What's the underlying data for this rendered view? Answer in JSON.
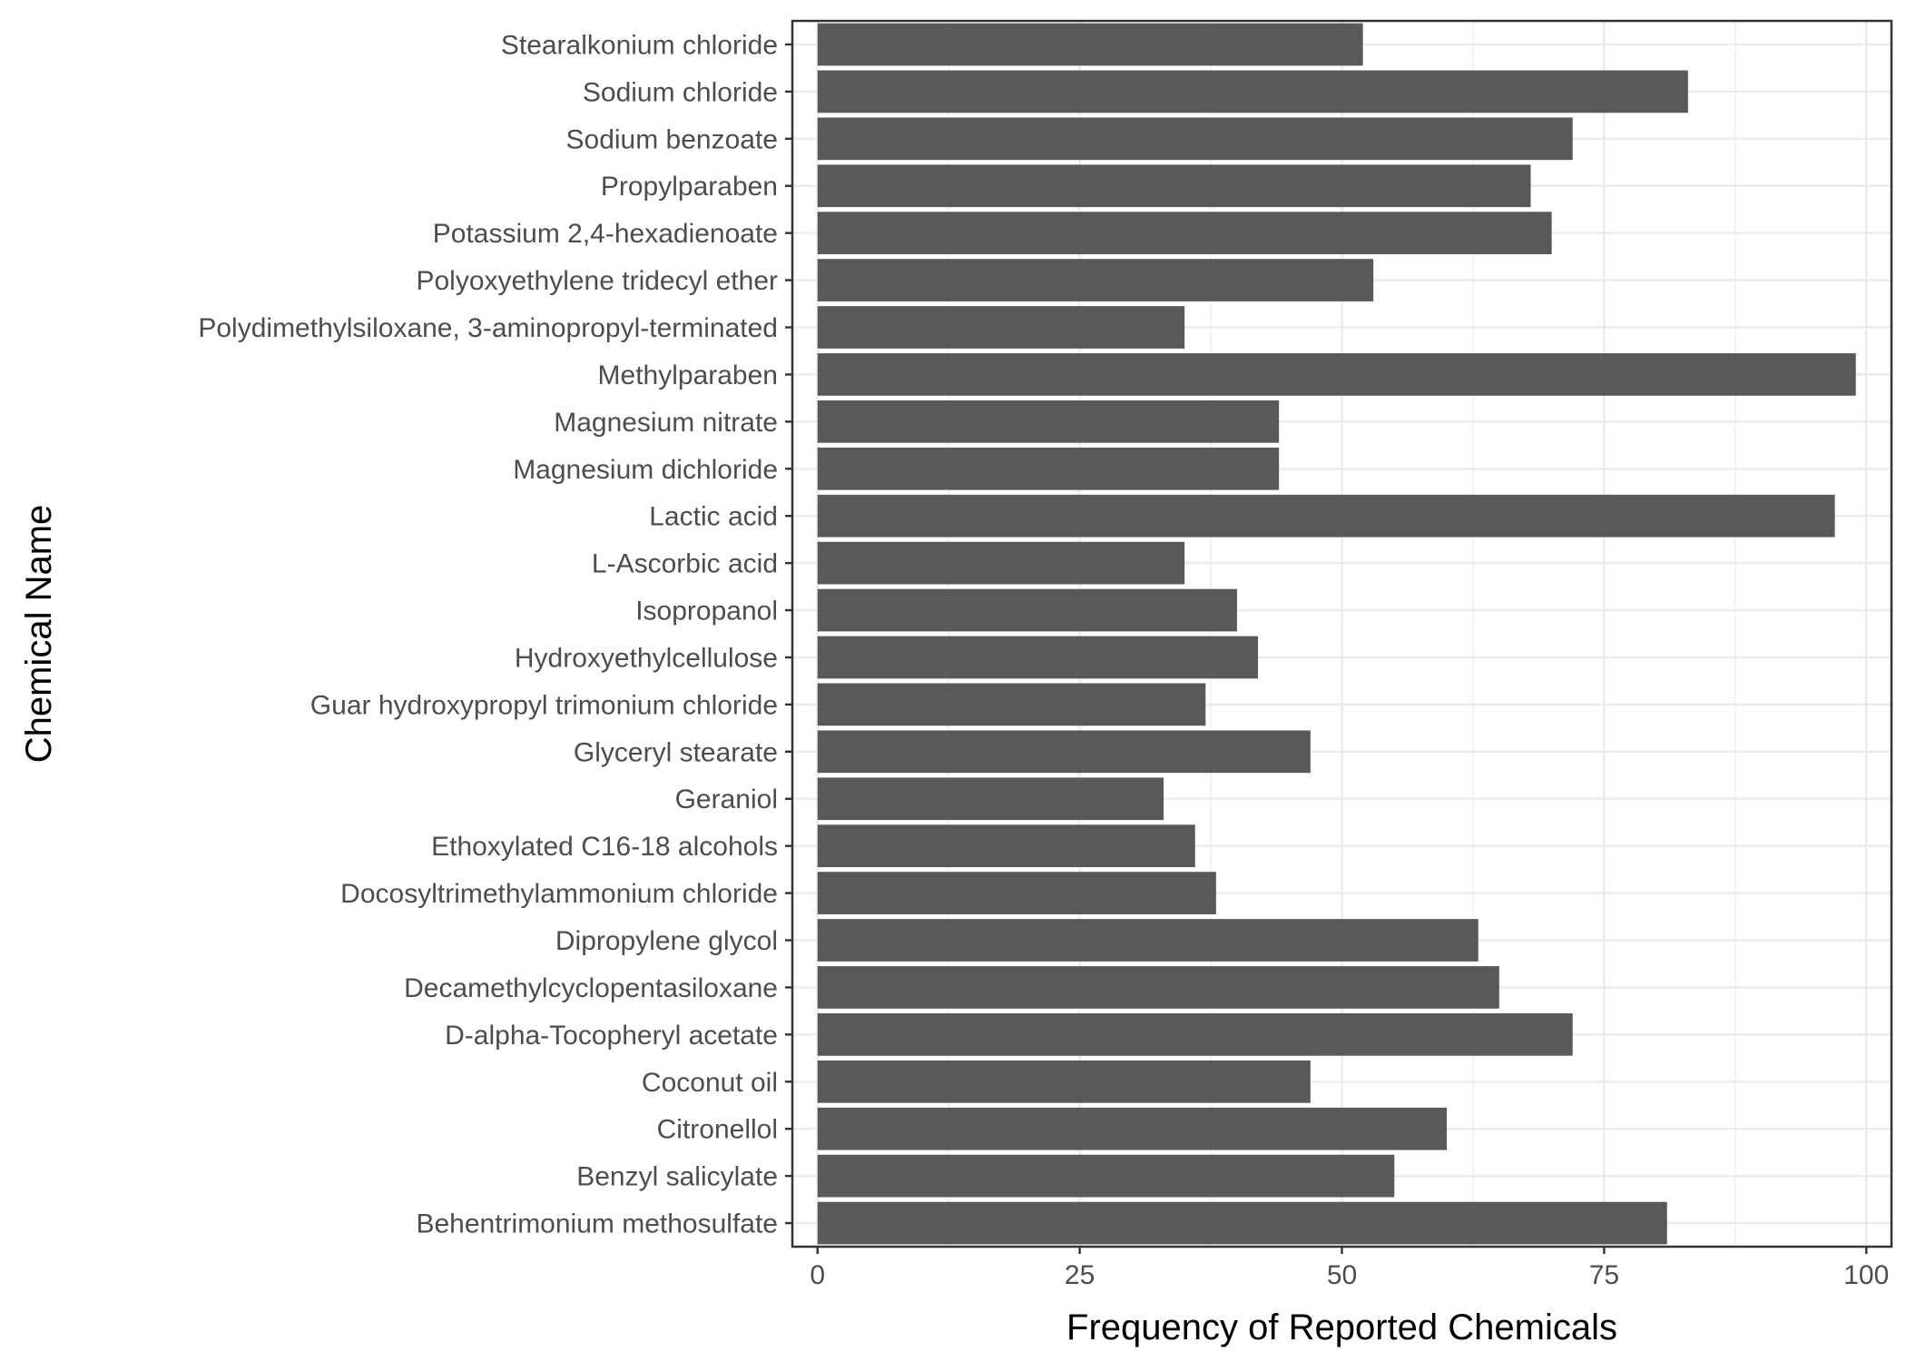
{
  "chart_data": {
    "type": "bar",
    "orientation": "horizontal",
    "title": "",
    "xlabel": "Frequency of Reported Chemicals",
    "ylabel": "Chemical Name",
    "xlim": [
      0,
      100
    ],
    "xticks": [
      0,
      25,
      50,
      75,
      100
    ],
    "grid": true,
    "legend": "none",
    "bar_color": "#595959",
    "categories": [
      "Stearalkonium chloride",
      "Sodium chloride",
      "Sodium benzoate",
      "Propylparaben",
      "Potassium 2,4-hexadienoate",
      "Polyoxyethylene tridecyl ether",
      "Polydimethylsiloxane, 3-aminopropyl-terminated",
      "Methylparaben",
      "Magnesium nitrate",
      "Magnesium dichloride",
      "Lactic acid",
      "L-Ascorbic acid",
      "Isopropanol",
      "Hydroxyethylcellulose",
      "Guar hydroxypropyl trimonium chloride",
      "Glyceryl stearate",
      "Geraniol",
      "Ethoxylated C16-18 alcohols",
      "Docosyltrimethylammonium chloride",
      "Dipropylene glycol",
      "Decamethylcyclopentasiloxane",
      "D-alpha-Tocopheryl acetate",
      "Coconut oil",
      "Citronellol",
      "Benzyl salicylate",
      "Behentrimonium methosulfate"
    ],
    "values": [
      52,
      83,
      72,
      68,
      70,
      53,
      35,
      99,
      44,
      44,
      97,
      35,
      40,
      42,
      37,
      47,
      33,
      36,
      38,
      63,
      65,
      72,
      47,
      60,
      55,
      81
    ]
  }
}
